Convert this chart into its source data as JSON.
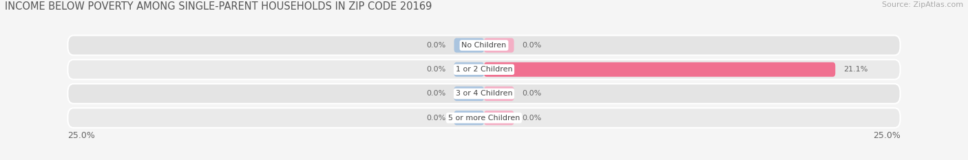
{
  "title": "INCOME BELOW POVERTY AMONG SINGLE-PARENT HOUSEHOLDS IN ZIP CODE 20169",
  "source": "Source: ZipAtlas.com",
  "categories": [
    "No Children",
    "1 or 2 Children",
    "3 or 4 Children",
    "5 or more Children"
  ],
  "single_father": [
    0.0,
    0.0,
    0.0,
    0.0
  ],
  "single_mother": [
    0.0,
    21.1,
    0.0,
    0.0
  ],
  "xlim": [
    -25,
    25
  ],
  "bar_height": 0.6,
  "father_color": "#aac4df",
  "mother_color": "#f07090",
  "mother_zero_color": "#f4afc5",
  "row_colors": [
    "#e4e4e4",
    "#eaeaea",
    "#e4e4e4",
    "#eaeaea"
  ],
  "background_color": "#f5f5f5",
  "title_fontsize": 10.5,
  "source_fontsize": 8,
  "label_fontsize": 8,
  "category_fontsize": 8,
  "legend_fontsize": 8.5,
  "tick_fontsize": 9,
  "min_bar_width": 1.8
}
